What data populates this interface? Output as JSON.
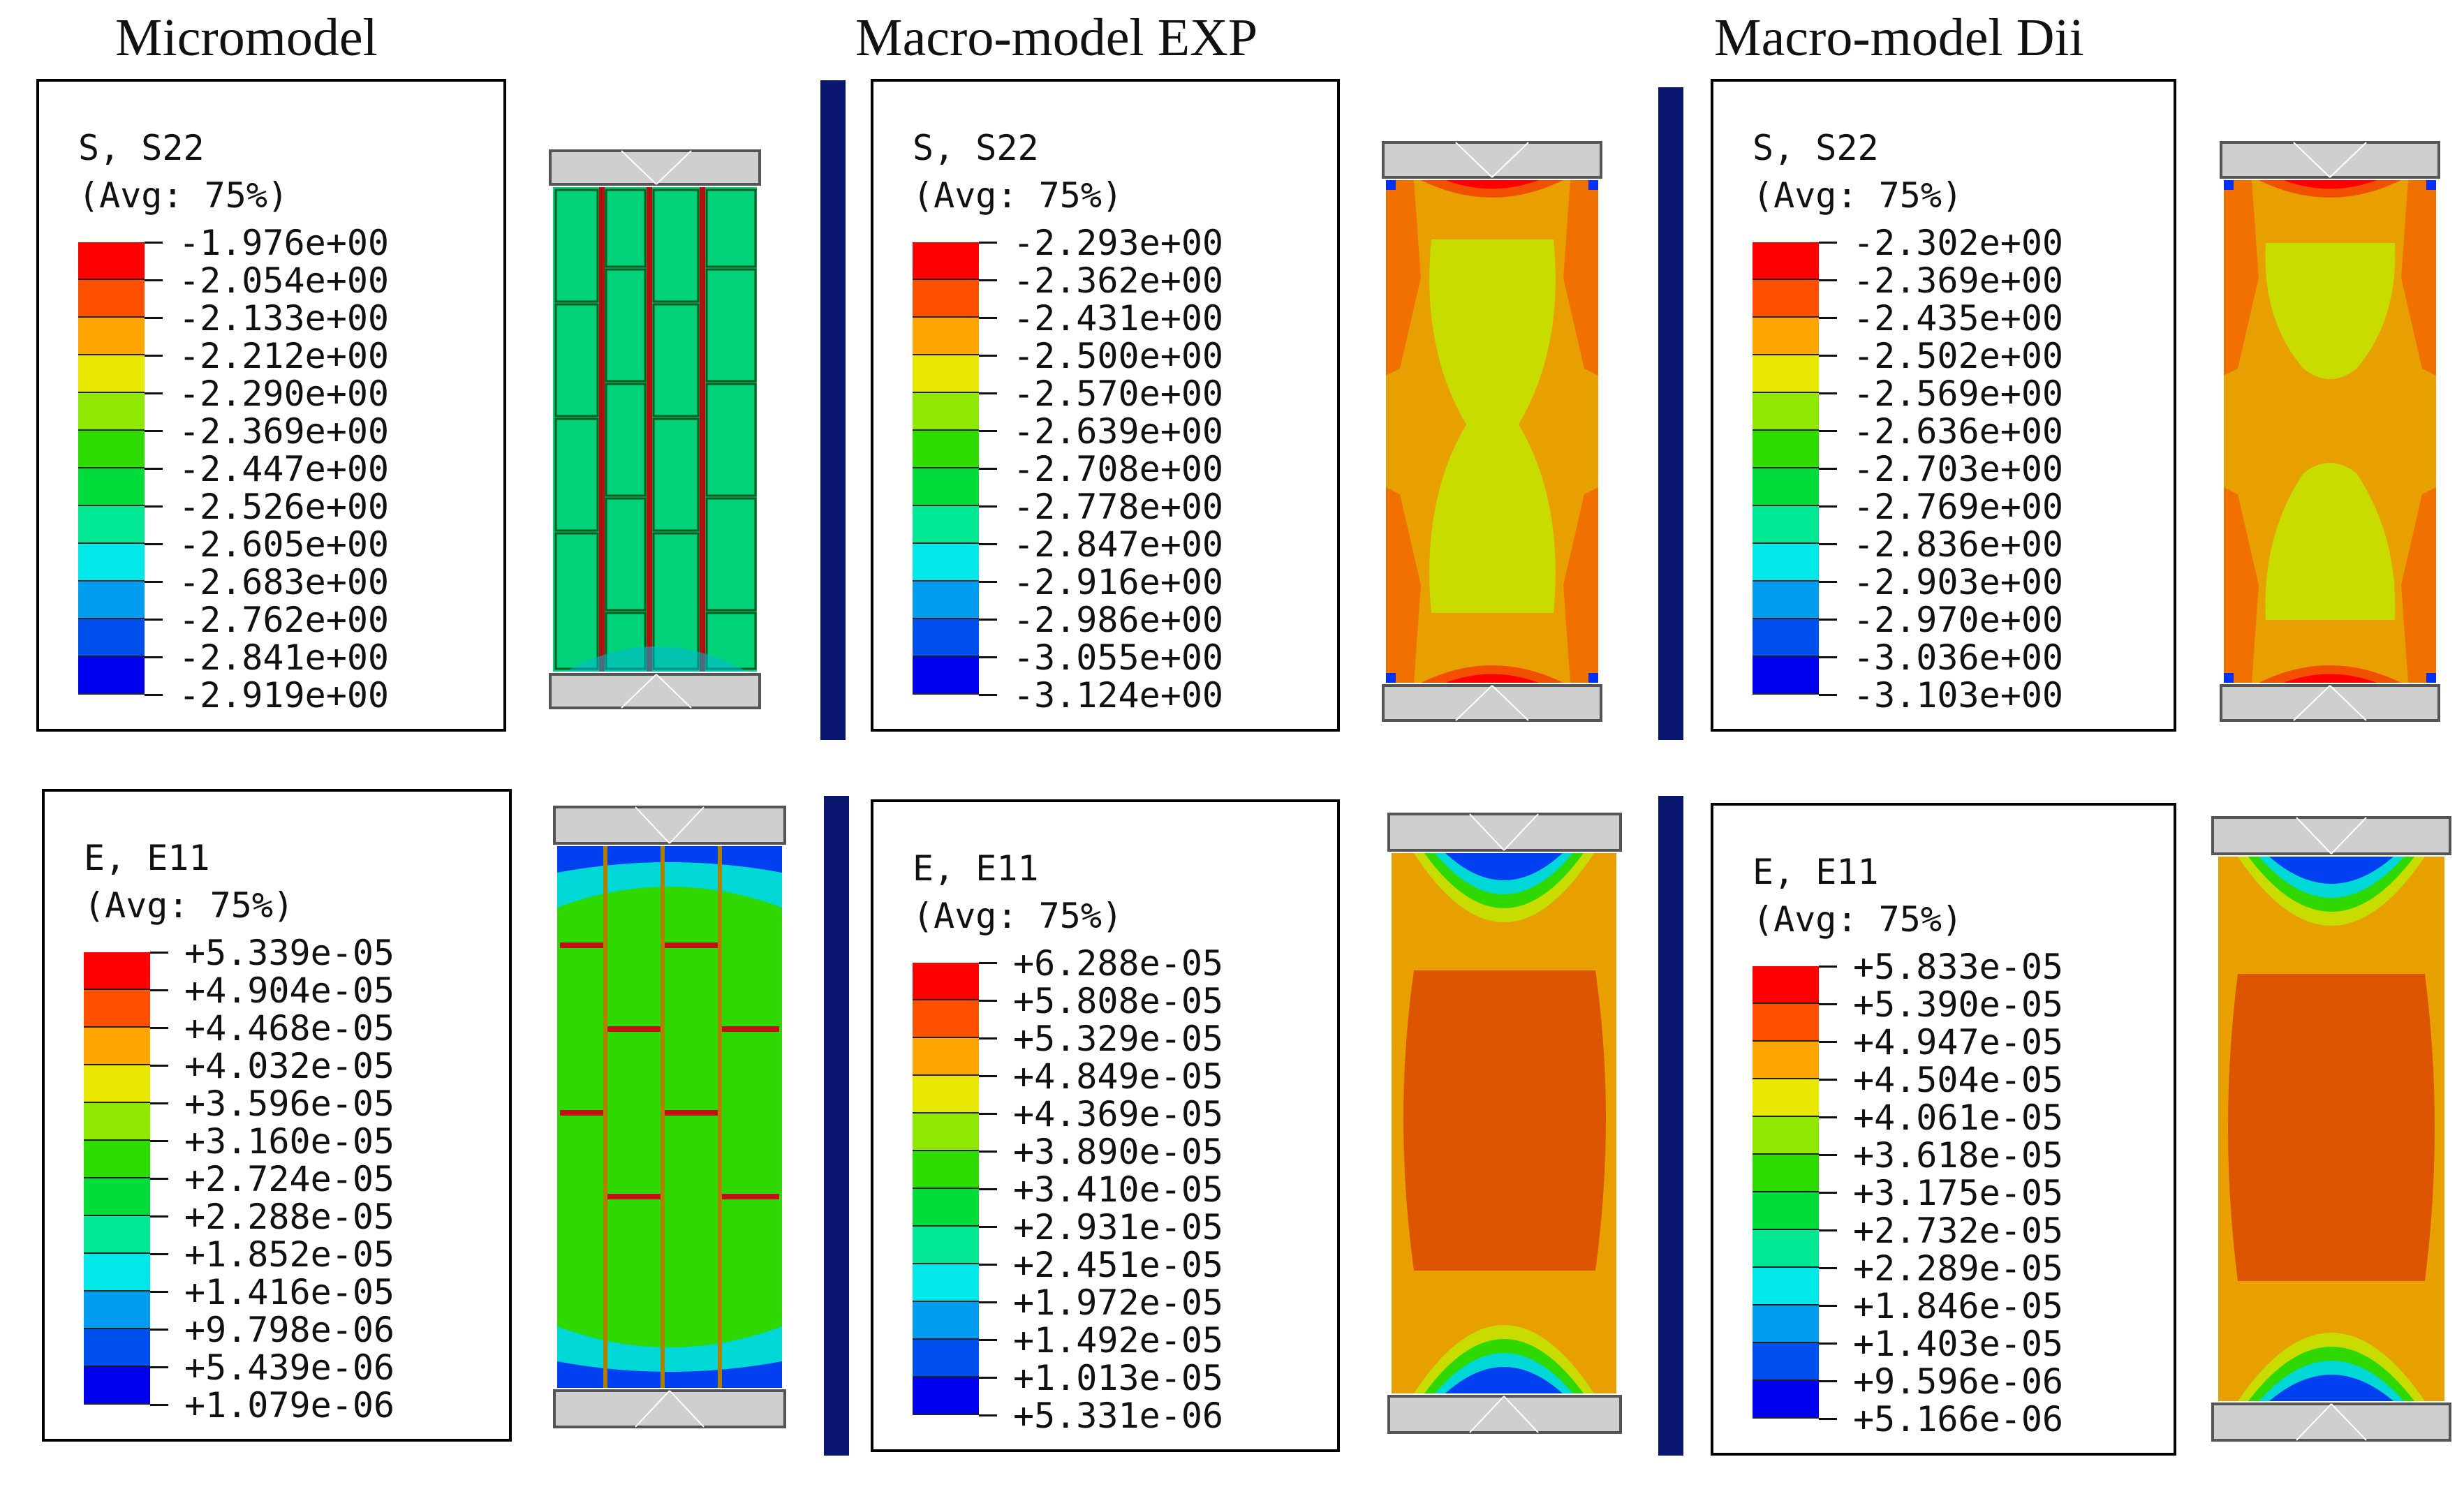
{
  "columns": [
    {
      "title": "Micromodel"
    },
    {
      "title": "Macro-model EXP"
    },
    {
      "title": "Macro-model Dii"
    }
  ],
  "legend_header": {
    "avg": "(Avg: 75%)"
  },
  "colors": [
    "#ff0000",
    "#ff5000",
    "#ffa500",
    "#e8e800",
    "#8ee800",
    "#2fdc00",
    "#00dc3a",
    "#00e894",
    "#00e8e8",
    "#009cf0",
    "#0050f0",
    "#0000f0"
  ],
  "panels": {
    "micro_s22": {
      "field": "S, S22",
      "values": [
        "-1.976e+00",
        "-2.054e+00",
        "-2.133e+00",
        "-2.212e+00",
        "-2.290e+00",
        "-2.369e+00",
        "-2.447e+00",
        "-2.526e+00",
        "-2.605e+00",
        "-2.683e+00",
        "-2.762e+00",
        "-2.841e+00",
        "-2.919e+00"
      ]
    },
    "exp_s22": {
      "field": "S, S22",
      "values": [
        "-2.293e+00",
        "-2.362e+00",
        "-2.431e+00",
        "-2.500e+00",
        "-2.570e+00",
        "-2.639e+00",
        "-2.708e+00",
        "-2.778e+00",
        "-2.847e+00",
        "-2.916e+00",
        "-2.986e+00",
        "-3.055e+00",
        "-3.124e+00"
      ]
    },
    "dii_s22": {
      "field": "S, S22",
      "values": [
        "-2.302e+00",
        "-2.369e+00",
        "-2.435e+00",
        "-2.502e+00",
        "-2.569e+00",
        "-2.636e+00",
        "-2.703e+00",
        "-2.769e+00",
        "-2.836e+00",
        "-2.903e+00",
        "-2.970e+00",
        "-3.036e+00",
        "-3.103e+00"
      ]
    },
    "micro_e11": {
      "field": "E, E11",
      "values": [
        "+5.339e-05",
        "+4.904e-05",
        "+4.468e-05",
        "+4.032e-05",
        "+3.596e-05",
        "+3.160e-05",
        "+2.724e-05",
        "+2.288e-05",
        "+1.852e-05",
        "+1.416e-05",
        "+9.798e-06",
        "+5.439e-06",
        "+1.079e-06"
      ]
    },
    "exp_e11": {
      "field": "E, E11",
      "values": [
        "+6.288e-05",
        "+5.808e-05",
        "+5.329e-05",
        "+4.849e-05",
        "+4.369e-05",
        "+3.890e-05",
        "+3.410e-05",
        "+2.931e-05",
        "+2.451e-05",
        "+1.972e-05",
        "+1.492e-05",
        "+1.013e-05",
        "+5.331e-06"
      ]
    },
    "dii_e11": {
      "field": "E, E11",
      "values": [
        "+5.833e-05",
        "+5.390e-05",
        "+4.947e-05",
        "+4.504e-05",
        "+4.061e-05",
        "+3.618e-05",
        "+3.175e-05",
        "+2.732e-05",
        "+2.289e-05",
        "+1.846e-05",
        "+1.403e-05",
        "+9.596e-06",
        "+5.166e-06"
      ]
    }
  }
}
